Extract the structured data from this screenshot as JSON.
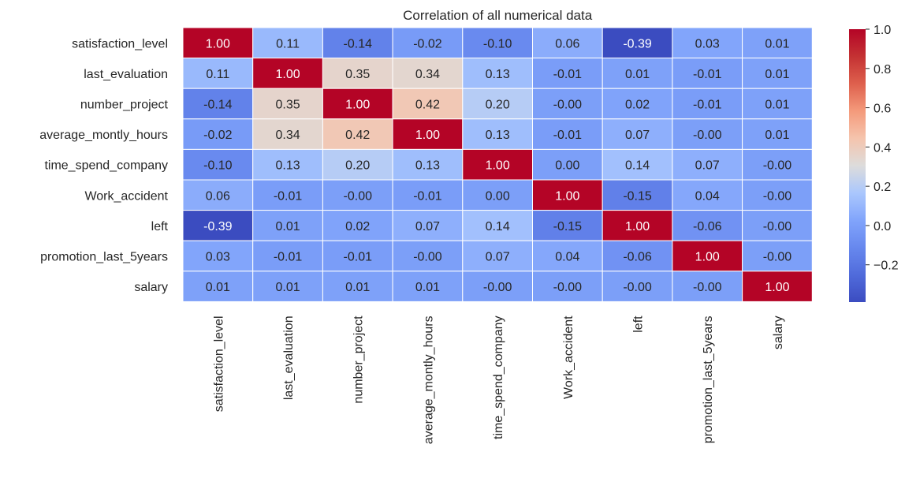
{
  "chart_data": {
    "type": "heatmap",
    "title": "Correlation of all numerical data",
    "xlabel": "",
    "ylabel": "",
    "row_labels": [
      "satisfaction_level",
      "last_evaluation",
      "number_project",
      "average_montly_hours",
      "time_spend_company",
      "Work_accident",
      "left",
      "promotion_last_5years",
      "salary"
    ],
    "col_labels": [
      "satisfaction_level",
      "last_evaluation",
      "number_project",
      "average_montly_hours",
      "time_spend_company",
      "Work_accident",
      "left",
      "promotion_last_5years",
      "salary"
    ],
    "values": [
      [
        1.0,
        0.11,
        -0.14,
        -0.02,
        -0.1,
        0.06,
        -0.39,
        0.03,
        0.01
      ],
      [
        0.11,
        1.0,
        0.35,
        0.34,
        0.13,
        -0.01,
        0.01,
        -0.01,
        0.01
      ],
      [
        -0.14,
        0.35,
        1.0,
        0.42,
        0.2,
        -0.0,
        0.02,
        -0.01,
        0.01
      ],
      [
        -0.02,
        0.34,
        0.42,
        1.0,
        0.13,
        -0.01,
        0.07,
        -0.0,
        0.01
      ],
      [
        -0.1,
        0.13,
        0.2,
        0.13,
        1.0,
        0.0,
        0.14,
        0.07,
        -0.0
      ],
      [
        0.06,
        -0.01,
        -0.0,
        -0.01,
        0.0,
        1.0,
        -0.15,
        0.04,
        -0.0
      ],
      [
        -0.39,
        0.01,
        0.02,
        0.07,
        0.14,
        -0.15,
        1.0,
        -0.06,
        -0.0
      ],
      [
        0.03,
        -0.01,
        -0.01,
        -0.0,
        0.07,
        0.04,
        -0.06,
        1.0,
        -0.0
      ],
      [
        0.01,
        0.01,
        0.01,
        0.01,
        -0.0,
        -0.0,
        -0.0,
        -0.0,
        1.0
      ]
    ],
    "annotation_labels": [
      [
        "1.00",
        "0.11",
        "-0.14",
        "-0.02",
        "-0.10",
        "0.06",
        "-0.39",
        "0.03",
        "0.01"
      ],
      [
        "0.11",
        "1.00",
        "0.35",
        "0.34",
        "0.13",
        "-0.01",
        "0.01",
        "-0.01",
        "0.01"
      ],
      [
        "-0.14",
        "0.35",
        "1.00",
        "0.42",
        "0.20",
        "-0.00",
        "0.02",
        "-0.01",
        "0.01"
      ],
      [
        "-0.02",
        "0.34",
        "0.42",
        "1.00",
        "0.13",
        "-0.01",
        "0.07",
        "-0.00",
        "0.01"
      ],
      [
        "-0.10",
        "0.13",
        "0.20",
        "0.13",
        "1.00",
        "0.00",
        "0.14",
        "0.07",
        "-0.00"
      ],
      [
        "0.06",
        "-0.01",
        "-0.00",
        "-0.01",
        "0.00",
        "1.00",
        "-0.15",
        "0.04",
        "-0.00"
      ],
      [
        "-0.39",
        "0.01",
        "0.02",
        "0.07",
        "0.14",
        "-0.15",
        "1.00",
        "-0.06",
        "-0.00"
      ],
      [
        "0.03",
        "-0.01",
        "-0.01",
        "-0.00",
        "0.07",
        "0.04",
        "-0.06",
        "1.00",
        "-0.00"
      ],
      [
        "0.01",
        "0.01",
        "0.01",
        "0.01",
        "-0.00",
        "-0.00",
        "-0.00",
        "-0.00",
        "1.00"
      ]
    ],
    "colormap": "coolwarm",
    "color_range": [
      -0.39,
      1.0
    ],
    "colorbar": {
      "ticks": [
        -0.2,
        0.0,
        0.2,
        0.4,
        0.6,
        0.8,
        1.0
      ],
      "tick_labels": [
        "−0.2",
        "0.0",
        "0.2",
        "0.4",
        "0.6",
        "0.8",
        "1.0"
      ],
      "placement": "right"
    },
    "grid": false,
    "cell_border_color": "#ffffff"
  }
}
